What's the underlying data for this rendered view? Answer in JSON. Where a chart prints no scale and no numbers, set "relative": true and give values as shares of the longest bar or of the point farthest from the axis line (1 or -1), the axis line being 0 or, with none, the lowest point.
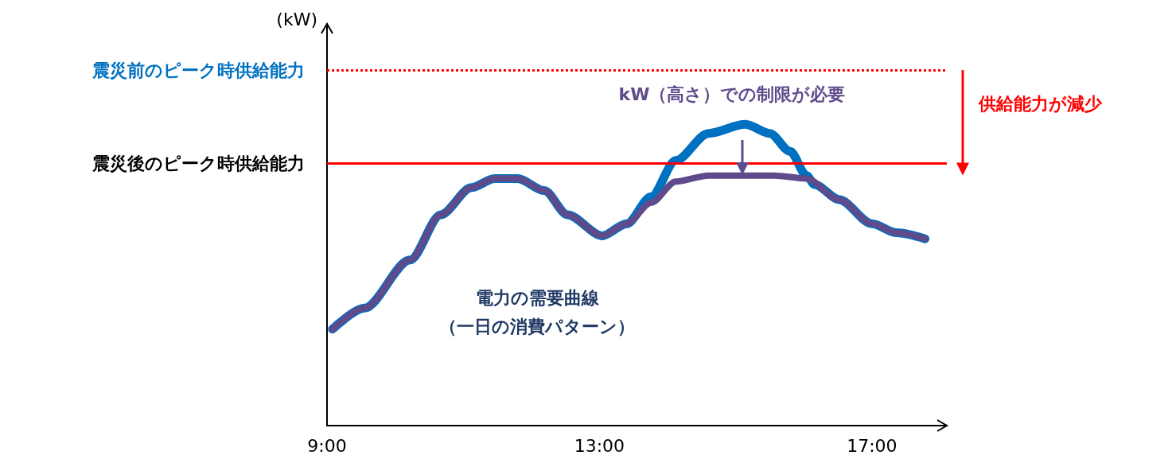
{
  "chart_data": {
    "type": "line",
    "relative": true,
    "xlim": [
      9,
      18.1
    ],
    "xticks": [
      {
        "value": 9,
        "label": "9:00"
      },
      {
        "value": 13,
        "label": "13:00"
      },
      {
        "value": 17,
        "label": "17:00"
      }
    ],
    "tick_labels": "x",
    "grid": false,
    "line_style": "solid",
    "series": [
      {
        "color": "#0070c0",
        "x": [
          9.08,
          9.55,
          10.22,
          10.67,
          11.12,
          11.46,
          11.8,
          12.19,
          12.53,
          13.04,
          13.4,
          13.76,
          14.12,
          14.6,
          15.14,
          15.5,
          15.8,
          16.04,
          16.16,
          16.52,
          17.0,
          17.36,
          17.78
        ],
        "values": [
          0.32,
          0.39,
          0.55,
          0.7,
          0.79,
          0.82,
          0.82,
          0.78,
          0.7,
          0.63,
          0.67,
          0.76,
          0.88,
          0.97,
          1.0,
          0.97,
          0.91,
          0.83,
          0.8,
          0.75,
          0.67,
          0.64,
          0.62
        ]
      },
      {
        "color": "#5f4b8b",
        "x": [
          9.08,
          9.55,
          10.22,
          10.67,
          11.12,
          11.46,
          11.8,
          12.19,
          12.53,
          13.04,
          13.4,
          13.76,
          14.12,
          14.6,
          15.02,
          15.56,
          16.04,
          16.52,
          17.0,
          17.36,
          17.78
        ],
        "values": [
          0.32,
          0.39,
          0.55,
          0.7,
          0.79,
          0.82,
          0.82,
          0.78,
          0.7,
          0.63,
          0.67,
          0.74,
          0.81,
          0.83,
          0.83,
          0.83,
          0.82,
          0.75,
          0.67,
          0.64,
          0.62
        ]
      }
    ],
    "ref_lines": [
      {
        "axis": "y",
        "value": 1.18,
        "label": "震災前のピーク時供給能力",
        "color": "#ff0000",
        "line_style": "dotted"
      },
      {
        "axis": "y",
        "value": 0.87,
        "label": "震災後のピーク時供給能力",
        "color": "#ff0000",
        "line_style": "solid"
      }
    ],
    "annotations": [
      "kW（高さ）での制限が必要",
      "供給能力が減少",
      "電力の需要曲線",
      "（一日の消費パターン）",
      "(kW)"
    ]
  }
}
